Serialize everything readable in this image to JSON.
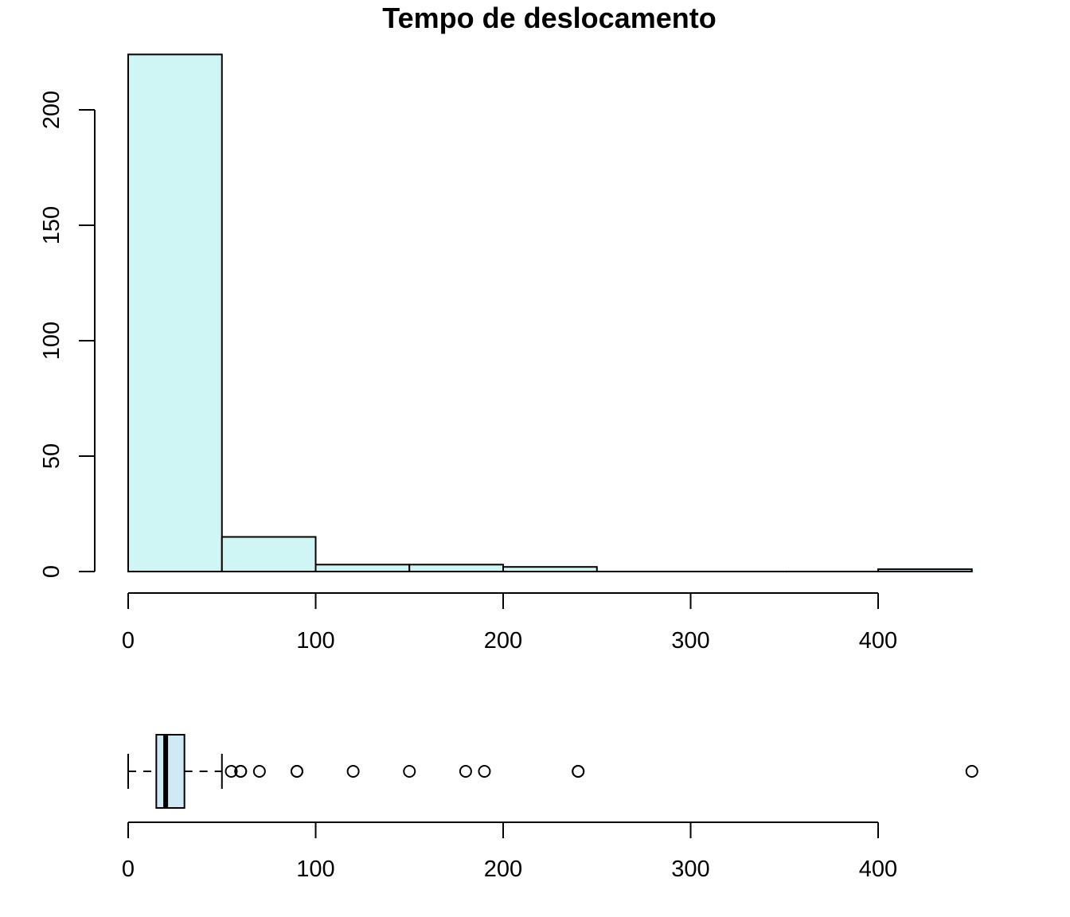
{
  "chart_data": [
    {
      "type": "bar",
      "subtype": "histogram",
      "title": "Tempo de deslocamento",
      "xlabel": "",
      "ylabel": "",
      "bins": [
        {
          "start": 0,
          "end": 50,
          "count": 224
        },
        {
          "start": 50,
          "end": 100,
          "count": 15
        },
        {
          "start": 100,
          "end": 150,
          "count": 3
        },
        {
          "start": 150,
          "end": 200,
          "count": 3
        },
        {
          "start": 200,
          "end": 250,
          "count": 2
        },
        {
          "start": 250,
          "end": 300,
          "count": 0
        },
        {
          "start": 300,
          "end": 350,
          "count": 0
        },
        {
          "start": 350,
          "end": 400,
          "count": 0
        },
        {
          "start": 400,
          "end": 450,
          "count": 1
        }
      ],
      "x_ticks": [
        0,
        100,
        200,
        300,
        400
      ],
      "y_ticks": [
        0,
        50,
        100,
        150,
        200
      ],
      "xlim": [
        0,
        450
      ],
      "ylim": [
        0,
        224
      ],
      "bar_color": "#d0f5f5",
      "grid": false
    },
    {
      "type": "boxplot",
      "orientation": "horizontal",
      "whisker_low": 0,
      "q1": 15,
      "median": 20,
      "q3": 30,
      "whisker_high": 50,
      "outliers": [
        55,
        60,
        60,
        70,
        90,
        90,
        120,
        150,
        180,
        190,
        240,
        240,
        450
      ],
      "x_ticks": [
        0,
        100,
        200,
        300,
        400
      ],
      "xlim": [
        0,
        450
      ],
      "box_color": "#d0eaf5",
      "grid": false
    }
  ]
}
